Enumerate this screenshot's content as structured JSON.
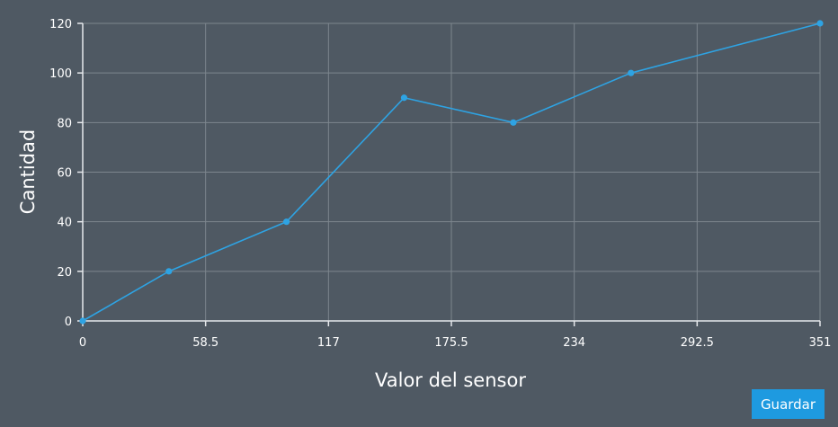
{
  "chart_data": {
    "type": "line",
    "xlabel": "Valor del sensor",
    "ylabel": "Cantidad",
    "xlim": [
      0,
      351
    ],
    "ylim": [
      0,
      120
    ],
    "x_ticks": [
      "0",
      "58.5",
      "117",
      "175.5",
      "234",
      "292.5",
      "351"
    ],
    "y_ticks": [
      "0",
      "20",
      "40",
      "60",
      "80",
      "100",
      "120"
    ],
    "grid": true,
    "series": [
      {
        "x": [
          0,
          41,
          97,
          153,
          205,
          261,
          351
        ],
        "y": [
          0,
          20,
          40,
          90,
          80,
          100,
          120
        ]
      }
    ]
  },
  "toolbar": {
    "save_label": "Guardar"
  },
  "colors": {
    "background": "#4f5963",
    "series": "#2ea3e3",
    "button": "#1e9ae0"
  }
}
